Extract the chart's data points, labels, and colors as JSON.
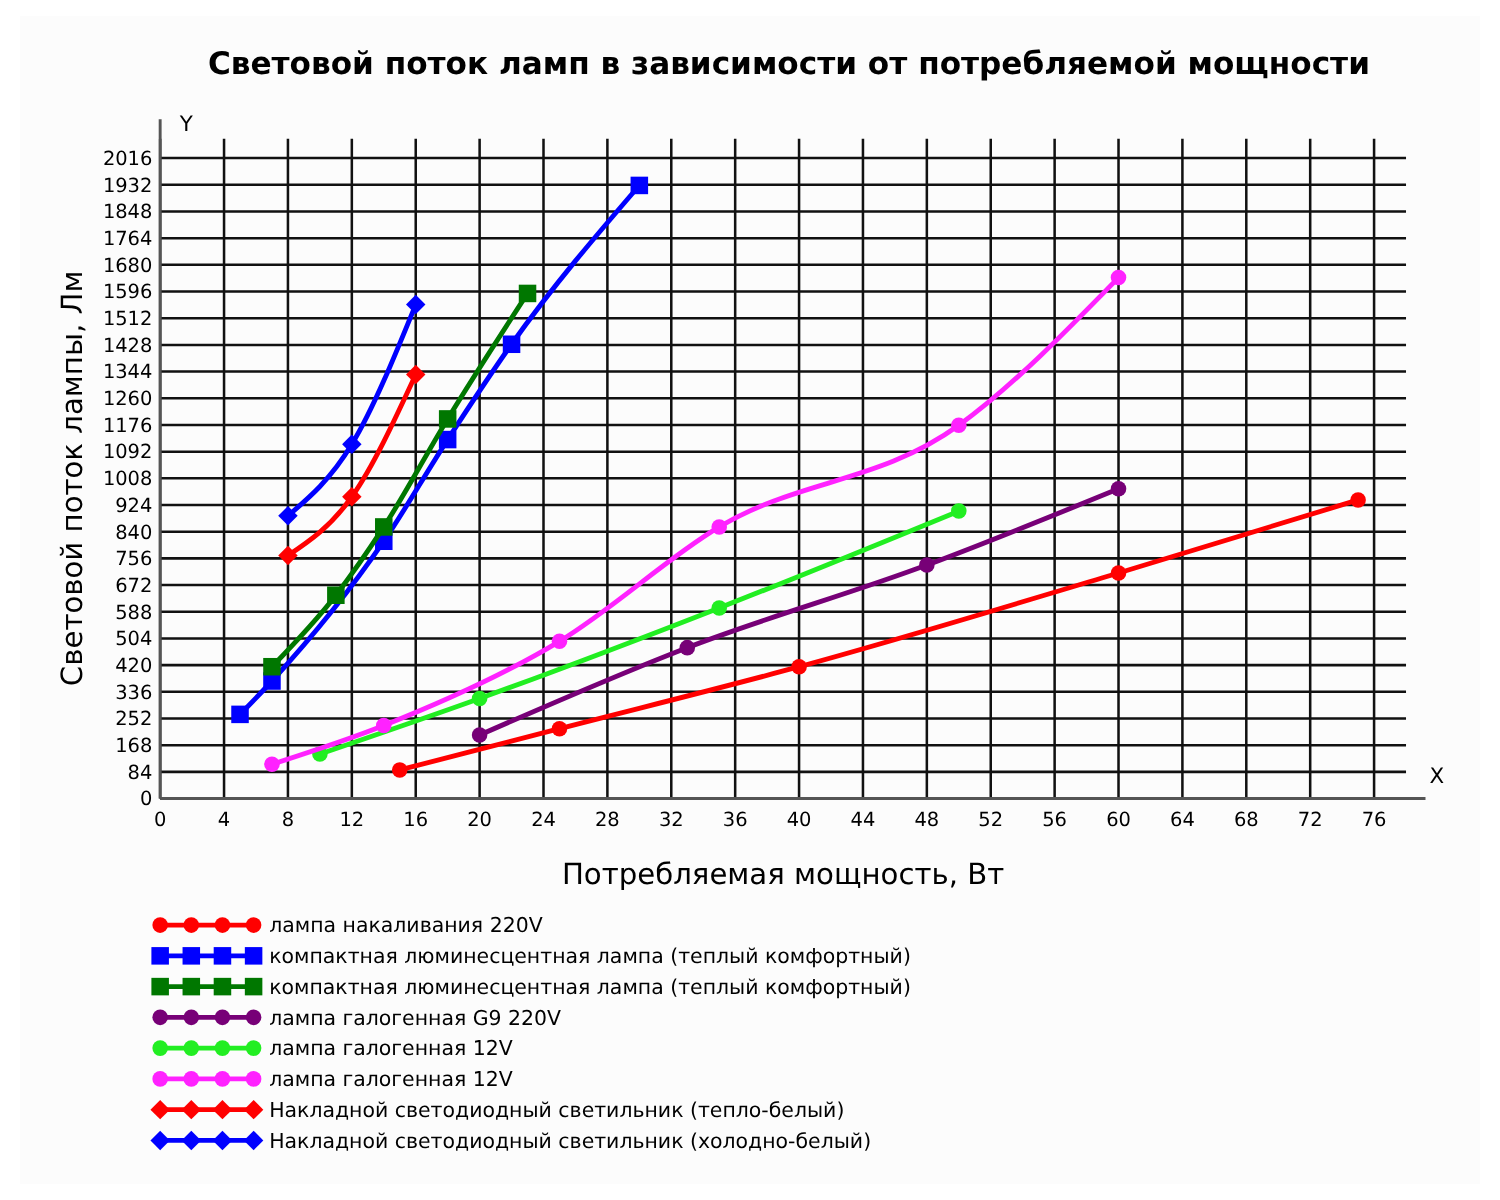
{
  "chart_data": {
    "type": "line",
    "title": "Световой поток ламп в зависимости от потребляемой мощности",
    "xlabel": "Потребляемая мощность, Вт",
    "ylabel": "Световой поток лампы, Лм",
    "annotations": [
      "Y",
      "X"
    ],
    "grid": true,
    "legend": "bottom",
    "line_style": "solid",
    "xlim": [
      0,
      78
    ],
    "xticks": [
      0,
      4,
      8,
      12,
      16,
      20,
      24,
      28,
      32,
      36,
      40,
      44,
      48,
      52,
      56,
      60,
      64,
      68,
      72,
      76
    ],
    "ylim": [
      0,
      2016
    ],
    "yticks": [
      0,
      84,
      168,
      252,
      336,
      420,
      504,
      588,
      672,
      756,
      840,
      924,
      1008,
      1092,
      1176,
      1260,
      1344,
      1428,
      1512,
      1596,
      1680,
      1764,
      1848,
      1932,
      2016
    ],
    "series": [
      {
        "name": "лампа накаливания 220V",
        "color": "#ff0000",
        "marker": "circle",
        "x": [
          15,
          25,
          40,
          60,
          75
        ],
        "values": [
          90,
          220,
          415,
          710,
          940
        ]
      },
      {
        "name": "компактная люминесцентная лампа (теплый комфортный)",
        "color": "#0000ff",
        "marker": "square",
        "x": [
          5,
          7,
          11,
          14,
          18,
          22,
          30
        ],
        "values": [
          265,
          370,
          null,
          810,
          1130,
          1430,
          1930
        ]
      },
      {
        "name": "компактная люминесцентная лампа (теплый комфортный)",
        "color": "#007700",
        "marker": "square",
        "x": [
          7,
          11,
          14,
          18,
          23
        ],
        "values": [
          415,
          640,
          855,
          1195,
          1590
        ]
      },
      {
        "name": "лампа галогенная G9 220V",
        "color": "#770077",
        "marker": "circle",
        "x": [
          20,
          33,
          48,
          60
        ],
        "values": [
          200,
          475,
          735,
          975
        ]
      },
      {
        "name": "лампа галогенная 12V",
        "color": "#22ee22",
        "marker": "circle",
        "x": [
          10,
          20,
          35,
          50
        ],
        "values": [
          140,
          315,
          600,
          905
        ]
      },
      {
        "name": "лампа галогенная 12V",
        "color": "#ff22ff",
        "marker": "circle",
        "x": [
          7,
          14,
          25,
          35,
          50,
          60
        ],
        "values": [
          108,
          230,
          495,
          855,
          1175,
          1640
        ]
      },
      {
        "name": "Накладной светодиодный светильник (тепло-белый)",
        "color": "#ff0000",
        "marker": "diamond",
        "x": [
          8,
          12,
          16
        ],
        "values": [
          765,
          950,
          1335
        ]
      },
      {
        "name": "Накладной светодиодный светильник (холодно-белый)",
        "color": "#0000ff",
        "marker": "diamond",
        "x": [
          8,
          12,
          16
        ],
        "values": [
          890,
          1115,
          1555
        ]
      }
    ]
  }
}
